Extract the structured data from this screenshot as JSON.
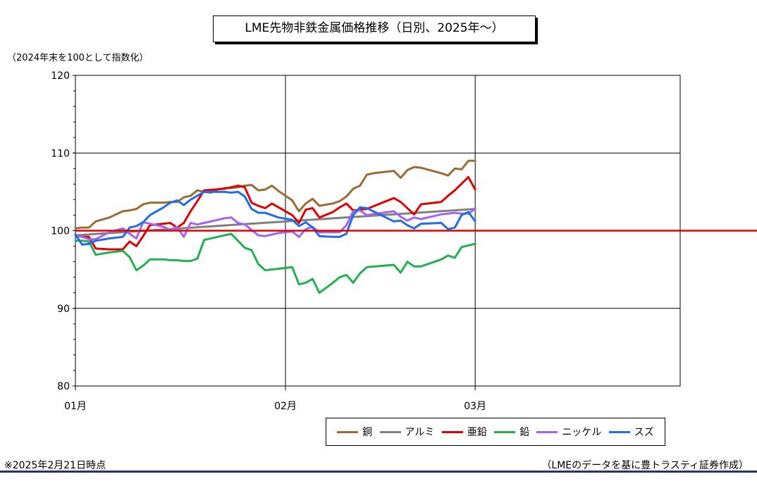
{
  "title": "LME先物非鉄金属価格推移（日別、2025年～）",
  "unit_note": "（2024年末を100として指数化）",
  "footnote": "※2025年2月21日時点",
  "source": "（LMEのデータを基に豊トラスティ証券作成）",
  "colors": {
    "baseline": "#e00000",
    "bottom_rule": "#1f3864"
  },
  "chart_data": {
    "type": "line",
    "title": "LME先物非鉄金属価格推移（日別、2025年～）",
    "xlabel": "",
    "ylabel": "（2024年末を100として指数化）",
    "x_ticks": [
      "01月",
      "02月",
      "03月"
    ],
    "x_range_days": [
      0,
      90
    ],
    "ylim": [
      80,
      120
    ],
    "y_ticks": [
      80,
      90,
      100,
      110,
      120
    ],
    "grid": true,
    "legend_position": "bottom-right",
    "reference_line": 100,
    "series": [
      {
        "name": "銅",
        "color": "#9b6a35",
        "values": [
          [
            0,
            100.3
          ],
          [
            1,
            100.4
          ],
          [
            2,
            100.4
          ],
          [
            3,
            101.2
          ],
          [
            5,
            101.7
          ],
          [
            7,
            102.5
          ],
          [
            8,
            102.6
          ],
          [
            9,
            102.8
          ],
          [
            10,
            103.4
          ],
          [
            11,
            103.6
          ],
          [
            13,
            103.6
          ],
          [
            14,
            103.7
          ],
          [
            15,
            103.7
          ],
          [
            16,
            104.3
          ],
          [
            17,
            104.5
          ],
          [
            18,
            105.2
          ],
          [
            19,
            105.0
          ],
          [
            20,
            104.9
          ],
          [
            21,
            105.3
          ],
          [
            22,
            105.5
          ],
          [
            23,
            105.5
          ],
          [
            24,
            105.6
          ],
          [
            25,
            105.8
          ],
          [
            26,
            105.9
          ],
          [
            27,
            105.2
          ],
          [
            28,
            105.3
          ],
          [
            29,
            105.8
          ],
          [
            30,
            105.1
          ],
          [
            32,
            103.9
          ],
          [
            33,
            102.5
          ],
          [
            34,
            103.5
          ],
          [
            35,
            104.1
          ],
          [
            36,
            103.2
          ],
          [
            38,
            103.5
          ],
          [
            39,
            103.8
          ],
          [
            40,
            104.4
          ],
          [
            41,
            105.4
          ],
          [
            42,
            105.8
          ],
          [
            43,
            107.2
          ],
          [
            44,
            107.4
          ],
          [
            47,
            107.7
          ],
          [
            48,
            106.8
          ],
          [
            49,
            107.8
          ],
          [
            50,
            108.2
          ],
          [
            51,
            108.1
          ],
          [
            54,
            107.4
          ],
          [
            55,
            107.1
          ],
          [
            56,
            108.0
          ],
          [
            57,
            107.9
          ],
          [
            58,
            109.0
          ],
          [
            59,
            109.0
          ]
        ]
      },
      {
        "name": "アルミ",
        "color": "#808080",
        "values": [
          [
            0,
            99.4
          ],
          [
            59,
            102.8
          ]
        ]
      },
      {
        "name": "亜鉛",
        "color": "#e00000",
        "values": [
          [
            0,
            99.4
          ],
          [
            1,
            99.2
          ],
          [
            2,
            99.2
          ],
          [
            3,
            97.7
          ],
          [
            5,
            97.6
          ],
          [
            7,
            97.6
          ],
          [
            8,
            98.6
          ],
          [
            9,
            98.0
          ],
          [
            10,
            99.3
          ],
          [
            11,
            100.7
          ],
          [
            13,
            100.9
          ],
          [
            14,
            101.0
          ],
          [
            15,
            100.4
          ],
          [
            16,
            101.0
          ],
          [
            17,
            102.5
          ],
          [
            18,
            103.8
          ],
          [
            19,
            105.2
          ],
          [
            22,
            105.4
          ],
          [
            23,
            105.6
          ],
          [
            24,
            105.8
          ],
          [
            25,
            105.6
          ],
          [
            26,
            103.6
          ],
          [
            27,
            103.2
          ],
          [
            28,
            102.9
          ],
          [
            29,
            103.5
          ],
          [
            30,
            103.0
          ],
          [
            32,
            102.0
          ],
          [
            33,
            101.0
          ],
          [
            34,
            102.7
          ],
          [
            35,
            102.9
          ],
          [
            36,
            101.7
          ],
          [
            38,
            102.4
          ],
          [
            39,
            103.0
          ],
          [
            40,
            103.5
          ],
          [
            41,
            102.6
          ],
          [
            43,
            102.8
          ],
          [
            47,
            104.2
          ],
          [
            48,
            103.7
          ],
          [
            50,
            102.1
          ],
          [
            51,
            103.4
          ],
          [
            54,
            103.7
          ],
          [
            55,
            104.5
          ],
          [
            56,
            105.2
          ],
          [
            58,
            106.9
          ],
          [
            59,
            105.3
          ]
        ]
      },
      {
        "name": "鉛",
        "color": "#22b050",
        "values": [
          [
            0,
            98.7
          ],
          [
            1,
            98.7
          ],
          [
            2,
            98.6
          ],
          [
            3,
            96.9
          ],
          [
            5,
            97.2
          ],
          [
            7,
            97.4
          ],
          [
            8,
            96.6
          ],
          [
            9,
            94.9
          ],
          [
            10,
            95.5
          ],
          [
            11,
            96.3
          ],
          [
            13,
            96.3
          ],
          [
            14,
            96.2
          ],
          [
            15,
            96.2
          ],
          [
            16,
            96.1
          ],
          [
            17,
            96.1
          ],
          [
            18,
            96.4
          ],
          [
            19,
            98.8
          ],
          [
            22,
            99.4
          ],
          [
            23,
            99.6
          ],
          [
            24,
            98.7
          ],
          [
            25,
            97.8
          ],
          [
            26,
            97.5
          ],
          [
            27,
            95.7
          ],
          [
            28,
            94.9
          ],
          [
            30,
            95.1
          ],
          [
            32,
            95.3
          ],
          [
            33,
            93.1
          ],
          [
            34,
            93.3
          ],
          [
            35,
            93.8
          ],
          [
            36,
            92.0
          ],
          [
            38,
            93.3
          ],
          [
            39,
            94.0
          ],
          [
            40,
            94.3
          ],
          [
            41,
            93.3
          ],
          [
            42,
            94.5
          ],
          [
            43,
            95.3
          ],
          [
            47,
            95.6
          ],
          [
            48,
            94.6
          ],
          [
            49,
            96.0
          ],
          [
            50,
            95.4
          ],
          [
            51,
            95.4
          ],
          [
            54,
            96.3
          ],
          [
            55,
            96.8
          ],
          [
            56,
            96.5
          ],
          [
            57,
            97.9
          ],
          [
            58,
            98.1
          ],
          [
            59,
            98.3
          ]
        ]
      },
      {
        "name": "ニッケル",
        "color": "#a463f2",
        "values": [
          [
            0,
            99.4
          ],
          [
            1,
            99.2
          ],
          [
            2,
            98.9
          ],
          [
            3,
            98.9
          ],
          [
            5,
            99.8
          ],
          [
            7,
            100.3
          ],
          [
            8,
            99.6
          ],
          [
            9,
            99.0
          ],
          [
            10,
            101.1
          ],
          [
            11,
            100.9
          ],
          [
            13,
            100.5
          ],
          [
            14,
            100.1
          ],
          [
            15,
            100.5
          ],
          [
            16,
            99.2
          ],
          [
            17,
            101.0
          ],
          [
            18,
            100.8
          ],
          [
            19,
            101.0
          ],
          [
            22,
            101.6
          ],
          [
            23,
            101.7
          ],
          [
            24,
            101.0
          ],
          [
            25,
            100.8
          ],
          [
            26,
            100.1
          ],
          [
            27,
            99.4
          ],
          [
            28,
            99.3
          ],
          [
            30,
            99.7
          ],
          [
            32,
            99.9
          ],
          [
            33,
            99.2
          ],
          [
            34,
            100.2
          ],
          [
            35,
            100.5
          ],
          [
            36,
            99.8
          ],
          [
            38,
            99.8
          ],
          [
            39,
            99.8
          ],
          [
            40,
            100.7
          ],
          [
            41,
            102.5
          ],
          [
            42,
            102.6
          ],
          [
            43,
            102.0
          ],
          [
            47,
            102.5
          ],
          [
            48,
            101.8
          ],
          [
            49,
            101.3
          ],
          [
            50,
            101.7
          ],
          [
            51,
            101.5
          ],
          [
            54,
            102.1
          ],
          [
            55,
            102.2
          ],
          [
            56,
            102.3
          ],
          [
            57,
            102.2
          ],
          [
            58,
            102.2
          ],
          [
            59,
            102.8
          ]
        ]
      },
      {
        "name": "スズ",
        "color": "#1f6ee8",
        "values": [
          [
            0,
            99.5
          ],
          [
            1,
            98.2
          ],
          [
            2,
            98.3
          ],
          [
            3,
            98.7
          ],
          [
            5,
            99.0
          ],
          [
            7,
            99.2
          ],
          [
            8,
            100.4
          ],
          [
            9,
            100.6
          ],
          [
            10,
            101.1
          ],
          [
            11,
            102.0
          ],
          [
            13,
            103.0
          ],
          [
            14,
            103.6
          ],
          [
            15,
            103.9
          ],
          [
            16,
            103.3
          ],
          [
            17,
            104.0
          ],
          [
            18,
            104.5
          ],
          [
            19,
            105.0
          ],
          [
            20,
            105.0
          ],
          [
            22,
            105.0
          ],
          [
            23,
            104.9
          ],
          [
            24,
            105.0
          ],
          [
            25,
            104.4
          ],
          [
            26,
            102.8
          ],
          [
            27,
            102.3
          ],
          [
            28,
            102.3
          ],
          [
            30,
            101.7
          ],
          [
            32,
            101.4
          ],
          [
            33,
            100.6
          ],
          [
            34,
            101.1
          ],
          [
            35,
            100.4
          ],
          [
            36,
            99.3
          ],
          [
            38,
            99.2
          ],
          [
            39,
            99.2
          ],
          [
            40,
            99.6
          ],
          [
            41,
            102.0
          ],
          [
            42,
            103.0
          ],
          [
            43,
            102.9
          ],
          [
            47,
            101.2
          ],
          [
            48,
            101.3
          ],
          [
            49,
            100.7
          ],
          [
            50,
            100.3
          ],
          [
            51,
            100.9
          ],
          [
            54,
            101.0
          ],
          [
            55,
            100.2
          ],
          [
            56,
            100.4
          ],
          [
            57,
            102.0
          ],
          [
            58,
            102.4
          ],
          [
            59,
            101.2
          ]
        ]
      }
    ]
  }
}
